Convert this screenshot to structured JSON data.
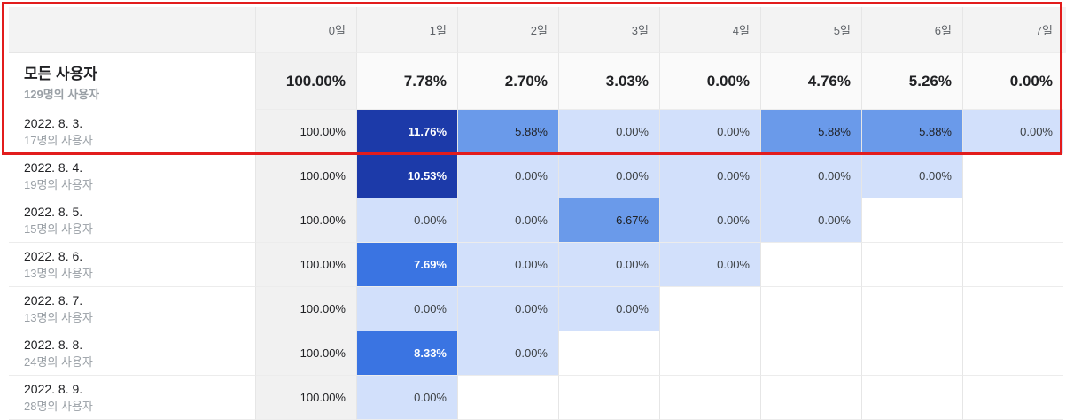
{
  "header": {
    "days": [
      "0일",
      "1일",
      "2일",
      "3일",
      "4일",
      "5일",
      "6일",
      "7일"
    ]
  },
  "total": {
    "title": "모든 사용자",
    "subtitle": "129명의 사용자",
    "values": [
      "100.00%",
      "7.78%",
      "2.70%",
      "3.03%",
      "0.00%",
      "4.76%",
      "5.26%",
      "0.00%"
    ]
  },
  "rows": [
    {
      "date": "2022. 8. 3.",
      "users": "17명의 사용자",
      "values": [
        "100.00%",
        "11.76%",
        "5.88%",
        "0.00%",
        "0.00%",
        "5.88%",
        "5.88%",
        "0.00%"
      ]
    },
    {
      "date": "2022. 8. 4.",
      "users": "19명의 사용자",
      "values": [
        "100.00%",
        "10.53%",
        "0.00%",
        "0.00%",
        "0.00%",
        "0.00%",
        "0.00%",
        ""
      ]
    },
    {
      "date": "2022. 8. 5.",
      "users": "15명의 사용자",
      "values": [
        "100.00%",
        "0.00%",
        "0.00%",
        "6.67%",
        "0.00%",
        "0.00%",
        "",
        ""
      ]
    },
    {
      "date": "2022. 8. 6.",
      "users": "13명의 사용자",
      "values": [
        "100.00%",
        "7.69%",
        "0.00%",
        "0.00%",
        "0.00%",
        "",
        "",
        ""
      ]
    },
    {
      "date": "2022. 8. 7.",
      "users": "13명의 사용자",
      "values": [
        "100.00%",
        "0.00%",
        "0.00%",
        "0.00%",
        "",
        "",
        "",
        ""
      ]
    },
    {
      "date": "2022. 8. 8.",
      "users": "24명의 사용자",
      "values": [
        "100.00%",
        "8.33%",
        "0.00%",
        "",
        "",
        "",
        "",
        ""
      ]
    },
    {
      "date": "2022. 8. 9.",
      "users": "28명의 사용자",
      "values": [
        "100.00%",
        "0.00%",
        "",
        "",
        "",
        "",
        "",
        ""
      ]
    }
  ],
  "colors": {
    "highlight": "#e21c1c",
    "dark": "#1c3aa9",
    "strong": "#3a74e2",
    "mid": "#6a9aea",
    "pale": "#d2e0fb"
  }
}
